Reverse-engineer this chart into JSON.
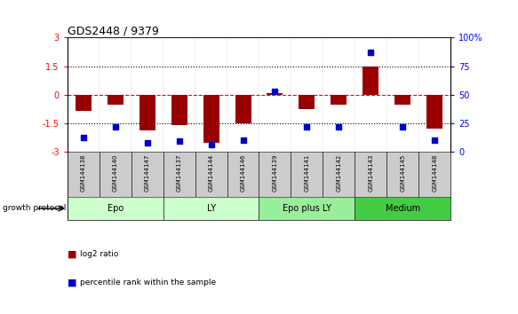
{
  "title": "GDS2448 / 9379",
  "samples": [
    "GSM144138",
    "GSM144140",
    "GSM144147",
    "GSM144137",
    "GSM144144",
    "GSM144146",
    "GSM144139",
    "GSM144141",
    "GSM144142",
    "GSM144143",
    "GSM144145",
    "GSM144148"
  ],
  "log2_ratio": [
    -0.85,
    -0.55,
    -1.9,
    -1.6,
    -2.55,
    -1.5,
    0.1,
    -0.75,
    -0.55,
    1.5,
    -0.55,
    -1.8
  ],
  "percentile_rank": [
    12,
    22,
    8,
    9,
    6,
    10,
    53,
    22,
    22,
    87,
    22,
    10
  ],
  "groups": [
    {
      "label": "Epo",
      "start": 0,
      "end": 2,
      "color": "#ccffcc"
    },
    {
      "label": "LY",
      "start": 3,
      "end": 5,
      "color": "#ccffcc"
    },
    {
      "label": "Epo plus LY",
      "start": 6,
      "end": 8,
      "color": "#99ee99"
    },
    {
      "label": "Medium",
      "start": 9,
      "end": 11,
      "color": "#44cc44"
    }
  ],
  "bar_color": "#990000",
  "dot_color": "#0000cc",
  "ylim_left": [
    -3,
    3
  ],
  "ylim_right": [
    0,
    100
  ],
  "yticks_left": [
    -3,
    -1.5,
    0,
    1.5,
    3
  ],
  "ytick_labels_left": [
    "-3",
    "-1.5",
    "0",
    "1.5",
    "3"
  ],
  "yticks_right": [
    0,
    25,
    50,
    75,
    100
  ],
  "ytick_labels_right": [
    "0",
    "25",
    "50",
    "75",
    "100%"
  ],
  "group_row_color": "#cccccc",
  "legend_red_label": "log2 ratio",
  "legend_blue_label": "percentile rank within the sample",
  "growth_protocol_label": "growth protocol"
}
